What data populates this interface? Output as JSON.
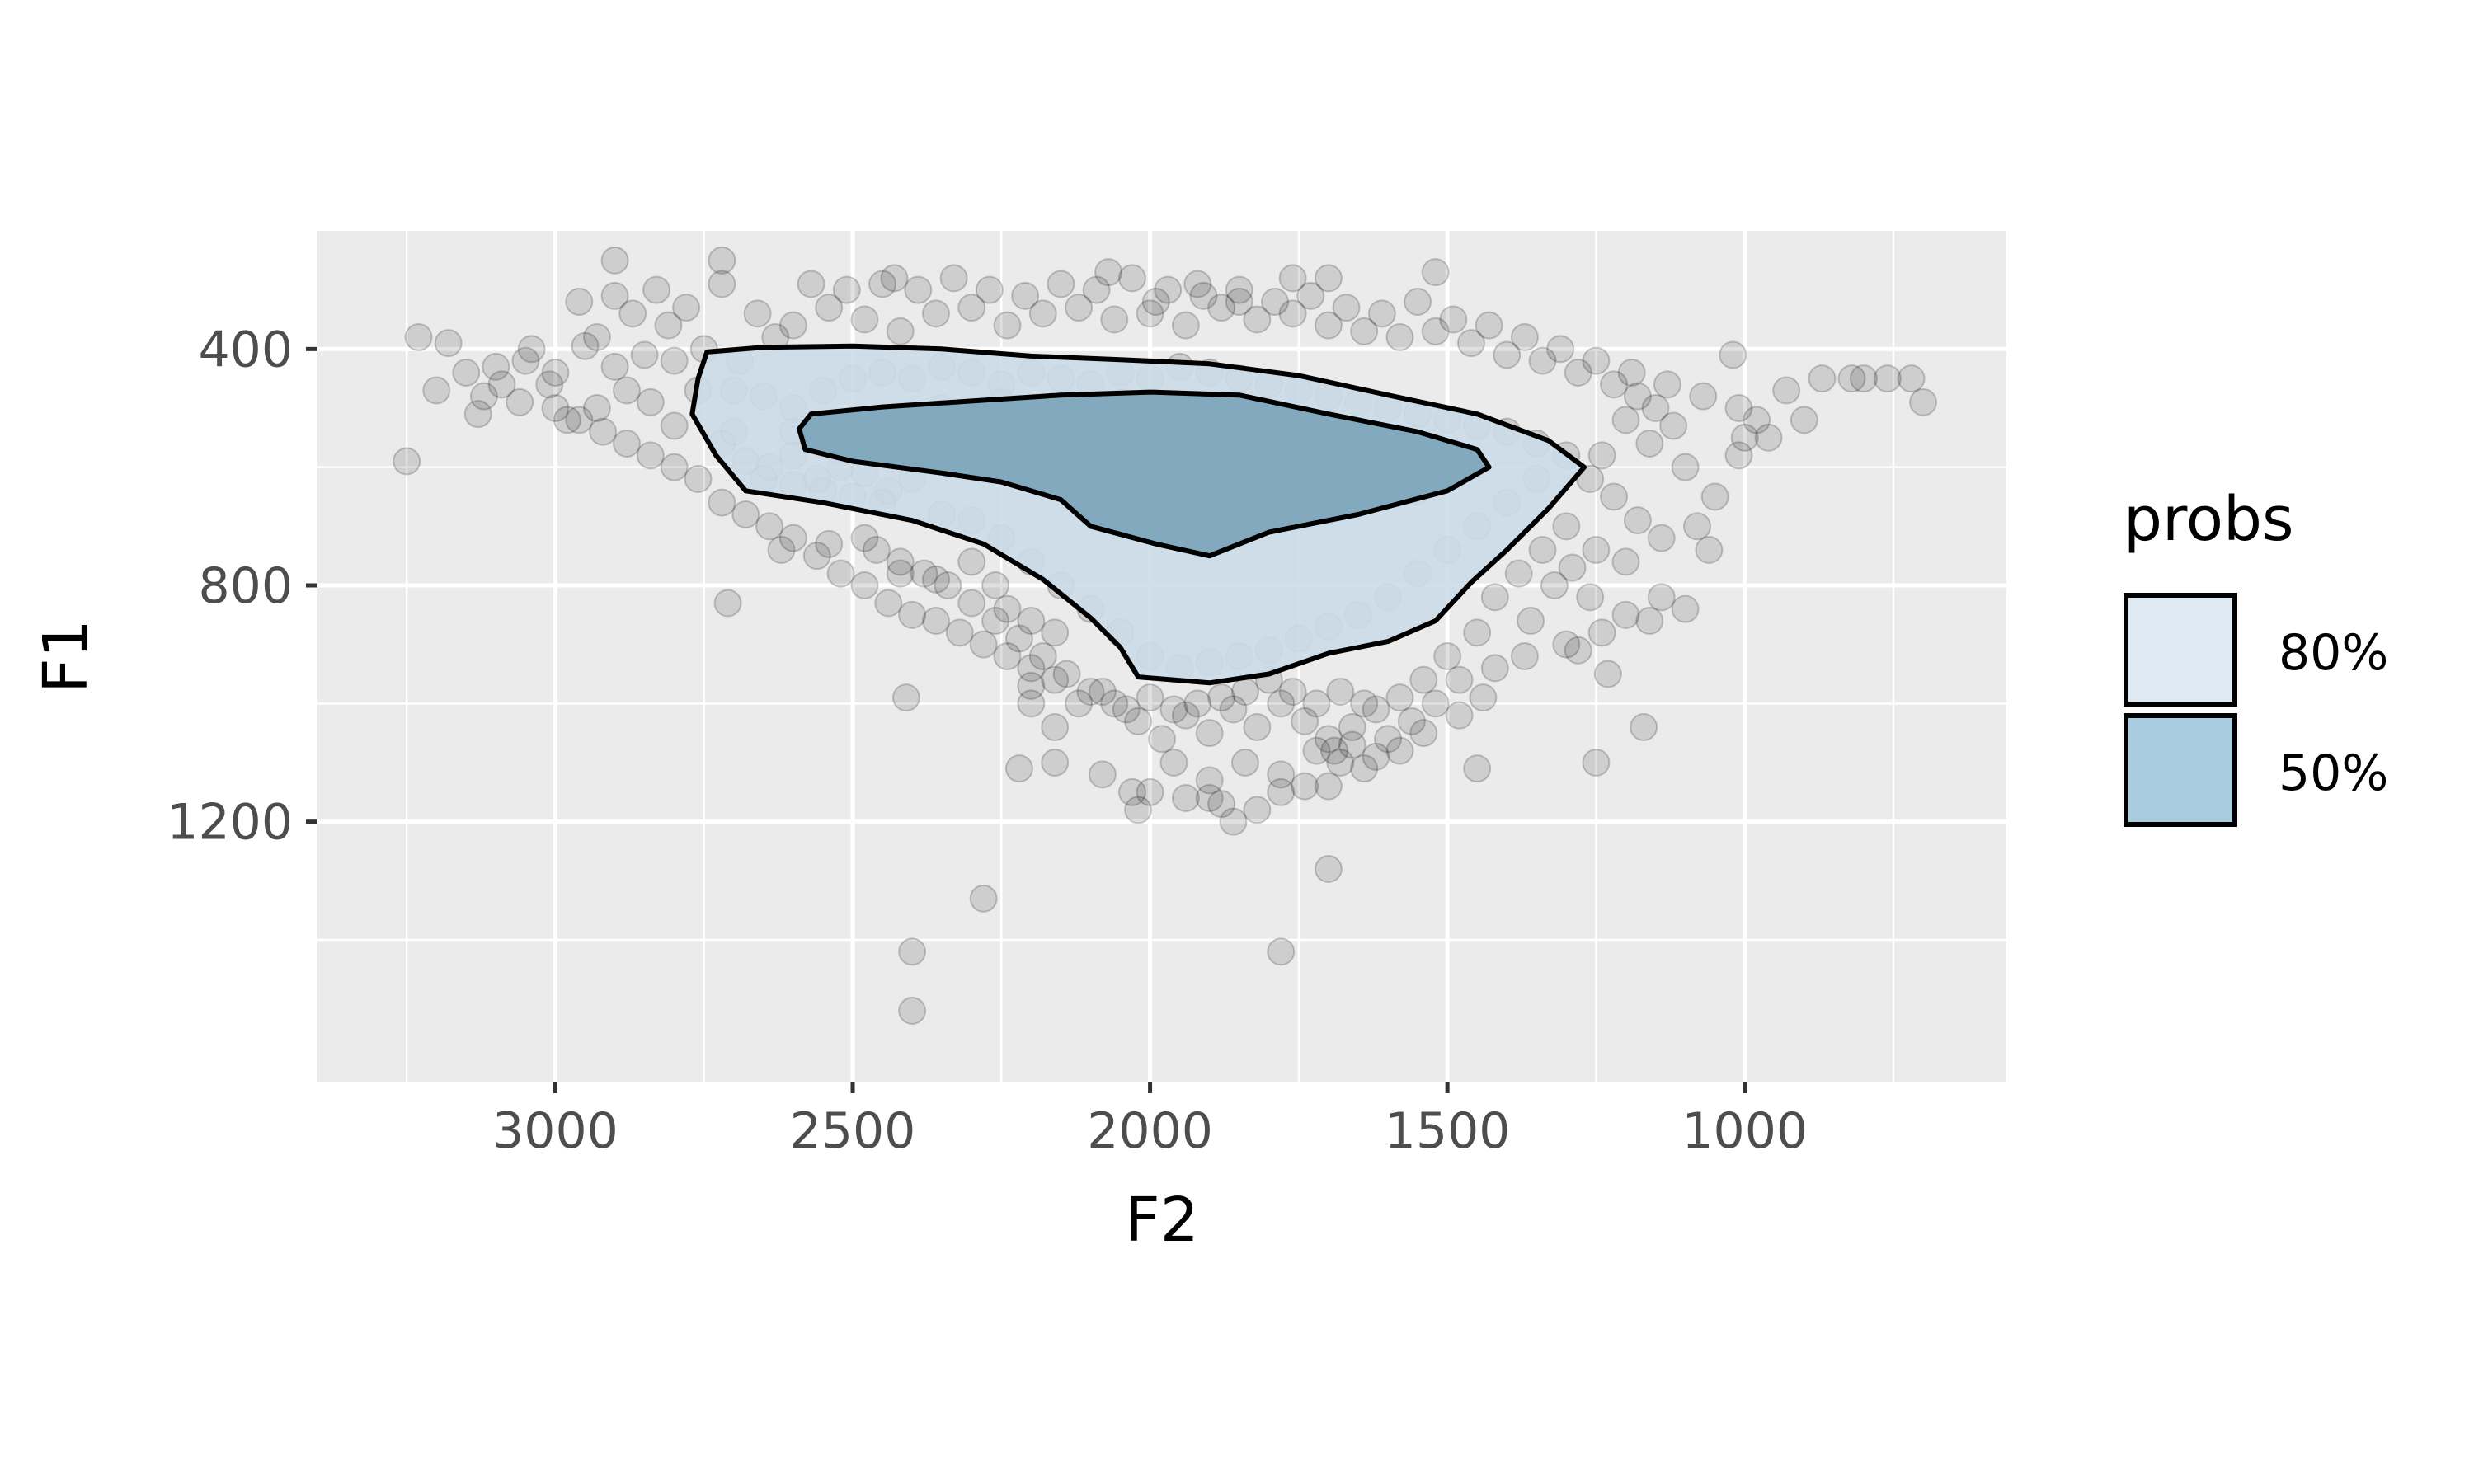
{
  "chart_data": {
    "type": "scatter",
    "title": "",
    "xlabel": "F2",
    "ylabel": "F1",
    "x_reversed": true,
    "y_reversed": true,
    "xlim": [
      3400,
      560
    ],
    "ylim": [
      200,
      1640
    ],
    "x_ticks": [
      3000,
      2500,
      2000,
      1500,
      1000
    ],
    "y_ticks": [
      400,
      800,
      1200
    ],
    "grid": true,
    "point_color": "#000000",
    "point_alpha": 0.12,
    "legend": {
      "title": "probs",
      "position": "right",
      "entries": [
        {
          "label": "80%",
          "fill": "#dfe9f2"
        },
        {
          "label": "50%",
          "fill": "#a9cde0"
        }
      ]
    },
    "contours": [
      {
        "name": "80%",
        "fill": "#cbdbe8",
        "points": [
          [
            2745,
            405
          ],
          [
            2650,
            397
          ],
          [
            2500,
            395
          ],
          [
            2350,
            400
          ],
          [
            2200,
            412
          ],
          [
            2050,
            418
          ],
          [
            1900,
            425
          ],
          [
            1750,
            445
          ],
          [
            1600,
            478
          ],
          [
            1450,
            510
          ],
          [
            1330,
            555
          ],
          [
            1270,
            600
          ],
          [
            1330,
            670
          ],
          [
            1400,
            740
          ],
          [
            1460,
            795
          ],
          [
            1520,
            860
          ],
          [
            1600,
            895
          ],
          [
            1700,
            915
          ],
          [
            1800,
            950
          ],
          [
            1900,
            965
          ],
          [
            2020,
            955
          ],
          [
            2050,
            905
          ],
          [
            2100,
            855
          ],
          [
            2180,
            790
          ],
          [
            2280,
            730
          ],
          [
            2400,
            690
          ],
          [
            2550,
            660
          ],
          [
            2680,
            640
          ],
          [
            2730,
            580
          ],
          [
            2770,
            510
          ],
          [
            2760,
            450
          ]
        ]
      },
      {
        "name": "50%",
        "fill": "#7aa3b8",
        "points": [
          [
            2570,
            510
          ],
          [
            2450,
            498
          ],
          [
            2300,
            488
          ],
          [
            2150,
            478
          ],
          [
            2000,
            473
          ],
          [
            1850,
            478
          ],
          [
            1700,
            510
          ],
          [
            1550,
            540
          ],
          [
            1450,
            570
          ],
          [
            1430,
            600
          ],
          [
            1500,
            640
          ],
          [
            1650,
            680
          ],
          [
            1800,
            710
          ],
          [
            1900,
            750
          ],
          [
            1990,
            730
          ],
          [
            2100,
            700
          ],
          [
            2150,
            655
          ],
          [
            2250,
            625
          ],
          [
            2350,
            610
          ],
          [
            2500,
            590
          ],
          [
            2580,
            570
          ],
          [
            2590,
            535
          ]
        ]
      }
    ],
    "points": [
      [
        3180,
        390
      ],
      [
        3150,
        440
      ],
      [
        3100,
        430
      ],
      [
        3050,
        420
      ],
      [
        3000,
        440
      ],
      [
        2950,
        395
      ],
      [
        2900,
        430
      ],
      [
        2850,
        410
      ],
      [
        2800,
        420
      ],
      [
        2750,
        400
      ],
      [
        3200,
        470
      ],
      [
        3120,
        480
      ],
      [
        3060,
        490
      ],
      [
        3010,
        460
      ],
      [
        2980,
        520
      ],
      [
        2930,
        500
      ],
      [
        2880,
        470
      ],
      [
        2840,
        490
      ],
      [
        2800,
        530
      ],
      [
        2760,
        470
      ],
      [
        2720,
        560
      ],
      [
        2700,
        540
      ],
      [
        2680,
        590
      ],
      [
        2640,
        600
      ],
      [
        2600,
        580
      ],
      [
        2560,
        620
      ],
      [
        2520,
        600
      ],
      [
        2480,
        610
      ],
      [
        2440,
        640
      ],
      [
        2400,
        620
      ],
      [
        2960,
        320
      ],
      [
        2900,
        310
      ],
      [
        2830,
        300
      ],
      [
        2780,
        330
      ],
      [
        2720,
        290
      ],
      [
        2660,
        340
      ],
      [
        2600,
        360
      ],
      [
        2540,
        330
      ],
      [
        2480,
        350
      ],
      [
        2420,
        370
      ],
      [
        2360,
        340
      ],
      [
        2300,
        330
      ],
      [
        2240,
        360
      ],
      [
        2180,
        340
      ],
      [
        2120,
        330
      ],
      [
        2060,
        350
      ],
      [
        2000,
        340
      ],
      [
        1940,
        360
      ],
      [
        1880,
        330
      ],
      [
        1820,
        350
      ],
      [
        1760,
        340
      ],
      [
        1700,
        360
      ],
      [
        1640,
        370
      ],
      [
        1580,
        380
      ],
      [
        1520,
        370
      ],
      [
        1460,
        390
      ],
      [
        1400,
        410
      ],
      [
        1340,
        420
      ],
      [
        1280,
        440
      ],
      [
        1220,
        460
      ],
      [
        1180,
        480
      ],
      [
        1150,
        500
      ],
      [
        1120,
        530
      ],
      [
        1160,
        560
      ],
      [
        1200,
        520
      ],
      [
        1240,
        580
      ],
      [
        1260,
        620
      ],
      [
        1220,
        650
      ],
      [
        1180,
        690
      ],
      [
        1140,
        720
      ],
      [
        1300,
        700
      ],
      [
        1340,
        740
      ],
      [
        1380,
        780
      ],
      [
        1420,
        820
      ],
      [
        1360,
        860
      ],
      [
        1300,
        900
      ],
      [
        1240,
        880
      ],
      [
        1200,
        850
      ],
      [
        1260,
        820
      ],
      [
        1320,
        800
      ],
      [
        1450,
        880
      ],
      [
        1500,
        920
      ],
      [
        1540,
        960
      ],
      [
        1580,
        990
      ],
      [
        1620,
        1010
      ],
      [
        1660,
        1040
      ],
      [
        1700,
        1060
      ],
      [
        1740,
        1030
      ],
      [
        1780,
        1000
      ],
      [
        1820,
        1040
      ],
      [
        1860,
        1010
      ],
      [
        1900,
        1050
      ],
      [
        1940,
        1020
      ],
      [
        1980,
        1060
      ],
      [
        2020,
        1030
      ],
      [
        2060,
        1000
      ],
      [
        2100,
        980
      ],
      [
        2140,
        950
      ],
      [
        2180,
        920
      ],
      [
        2220,
        890
      ],
      [
        2260,
        860
      ],
      [
        2300,
        830
      ],
      [
        2340,
        800
      ],
      [
        2380,
        780
      ],
      [
        2420,
        760
      ],
      [
        2460,
        740
      ],
      [
        2200,
        1000
      ],
      [
        2160,
        1040
      ],
      [
        1960,
        1100
      ],
      [
        1900,
        1130
      ],
      [
        1840,
        1100
      ],
      [
        1780,
        1120
      ],
      [
        1720,
        1080
      ],
      [
        1660,
        1070
      ],
      [
        2080,
        1120
      ],
      [
        2000,
        1150
      ],
      [
        1940,
        1160
      ],
      [
        1880,
        1170
      ],
      [
        1700,
        1140
      ],
      [
        1620,
        1090
      ],
      [
        3250,
        590
      ],
      [
        3230,
        380
      ],
      [
        3130,
        510
      ],
      [
        3090,
        460
      ],
      [
        3040,
        400
      ],
      [
        2930,
        380
      ],
      [
        2870,
        340
      ],
      [
        2810,
        360
      ],
      [
        2690,
        420
      ],
      [
        2630,
        380
      ],
      [
        2570,
        290
      ],
      [
        2510,
        300
      ],
      [
        2450,
        290
      ],
      [
        2390,
        300
      ],
      [
        2330,
        280
      ],
      [
        2270,
        300
      ],
      [
        2210,
        310
      ],
      [
        2150,
        290
      ],
      [
        2090,
        300
      ],
      [
        2030,
        280
      ],
      [
        1970,
        300
      ],
      [
        1910,
        310
      ],
      [
        1850,
        300
      ],
      [
        1790,
        320
      ],
      [
        1730,
        310
      ],
      [
        1670,
        330
      ],
      [
        1610,
        340
      ],
      [
        1550,
        320
      ],
      [
        1490,
        350
      ],
      [
        1430,
        360
      ],
      [
        1370,
        380
      ],
      [
        1310,
        400
      ],
      [
        1250,
        420
      ],
      [
        1190,
        440
      ],
      [
        1130,
        460
      ],
      [
        1070,
        480
      ],
      [
        1010,
        500
      ],
      [
        980,
        520
      ],
      [
        960,
        550
      ],
      [
        1100,
        600
      ],
      [
        1050,
        650
      ],
      [
        1080,
        700
      ],
      [
        1200,
        760
      ],
      [
        1250,
        740
      ],
      [
        1290,
        770
      ],
      [
        1100,
        840
      ],
      [
        1160,
        860
      ],
      [
        1230,
        950
      ],
      [
        1280,
        910
      ],
      [
        1370,
        920
      ],
      [
        1420,
        940
      ],
      [
        1480,
        960
      ],
      [
        1520,
        1000
      ],
      [
        1560,
        1030
      ],
      [
        1600,
        1060
      ],
      [
        1640,
        1000
      ],
      [
        1680,
        980
      ],
      [
        1720,
        1000
      ],
      [
        1760,
        980
      ],
      [
        1800,
        960
      ],
      [
        1840,
        980
      ],
      [
        1880,
        990
      ],
      [
        1920,
        1000
      ],
      [
        1960,
        1010
      ],
      [
        2000,
        990
      ],
      [
        2040,
        1010
      ],
      [
        2080,
        980
      ],
      [
        2120,
        1000
      ],
      [
        2160,
        960
      ],
      [
        2200,
        940
      ],
      [
        2240,
        920
      ],
      [
        2280,
        900
      ],
      [
        2320,
        880
      ],
      [
        2360,
        860
      ],
      [
        2400,
        850
      ],
      [
        2440,
        830
      ],
      [
        2480,
        800
      ],
      [
        2520,
        780
      ],
      [
        2560,
        750
      ],
      [
        2600,
        720
      ],
      [
        2640,
        700
      ],
      [
        2680,
        680
      ],
      [
        2720,
        660
      ],
      [
        2760,
        620
      ],
      [
        2800,
        600
      ],
      [
        2840,
        580
      ],
      [
        2880,
        560
      ],
      [
        2920,
        540
      ],
      [
        2960,
        520
      ],
      [
        3000,
        500
      ],
      [
        2700,
        470
      ],
      [
        2650,
        480
      ],
      [
        2600,
        500
      ],
      [
        2550,
        470
      ],
      [
        2500,
        450
      ],
      [
        2450,
        440
      ],
      [
        2400,
        450
      ],
      [
        2350,
        430
      ],
      [
        2300,
        440
      ],
      [
        2250,
        460
      ],
      [
        2200,
        440
      ],
      [
        2150,
        450
      ],
      [
        2100,
        460
      ],
      [
        2050,
        440
      ],
      [
        2000,
        450
      ],
      [
        1950,
        430
      ],
      [
        1900,
        440
      ],
      [
        1850,
        450
      ],
      [
        1800,
        460
      ],
      [
        1750,
        470
      ],
      [
        1700,
        480
      ],
      [
        1650,
        490
      ],
      [
        1600,
        500
      ],
      [
        1550,
        510
      ],
      [
        1500,
        520
      ],
      [
        1450,
        530
      ],
      [
        1400,
        540
      ],
      [
        1350,
        560
      ],
      [
        1300,
        580
      ],
      [
        1350,
        620
      ],
      [
        1400,
        660
      ],
      [
        1450,
        700
      ],
      [
        1500,
        740
      ],
      [
        1550,
        780
      ],
      [
        1600,
        820
      ],
      [
        1650,
        850
      ],
      [
        1700,
        870
      ],
      [
        1750,
        890
      ],
      [
        1800,
        910
      ],
      [
        1850,
        920
      ],
      [
        1900,
        930
      ],
      [
        1950,
        940
      ],
      [
        2000,
        920
      ],
      [
        2050,
        880
      ],
      [
        2100,
        840
      ],
      [
        2150,
        800
      ],
      [
        2200,
        760
      ],
      [
        2250,
        720
      ],
      [
        2300,
        690
      ],
      [
        2350,
        680
      ],
      [
        2450,
        660
      ],
      [
        2500,
        650
      ],
      [
        2550,
        640
      ],
      [
        2600,
        630
      ],
      [
        2650,
        620
      ],
      [
        2300,
        600
      ],
      [
        2200,
        580
      ],
      [
        2100,
        560
      ],
      [
        2000,
        550
      ],
      [
        1900,
        560
      ],
      [
        1800,
        580
      ],
      [
        1700,
        600
      ],
      [
        1600,
        620
      ],
      [
        1550,
        640
      ],
      [
        1650,
        660
      ],
      [
        1750,
        680
      ],
      [
        1850,
        700
      ],
      [
        1950,
        680
      ],
      [
        2050,
        640
      ],
      [
        2150,
        620
      ],
      [
        2400,
        560
      ],
      [
        2350,
        540
      ],
      [
        2250,
        530
      ],
      [
        2150,
        520
      ],
      [
        2050,
        510
      ],
      [
        1950,
        520
      ],
      [
        1850,
        530
      ],
      [
        1750,
        540
      ],
      [
        1650,
        560
      ],
      [
        1600,
        580
      ],
      [
        2600,
        540
      ],
      [
        2550,
        560
      ],
      [
        2450,
        520
      ],
      [
        2350,
        500
      ],
      [
        2250,
        490
      ],
      [
        2150,
        500
      ],
      [
        2050,
        490
      ],
      [
        1950,
        500
      ],
      [
        1850,
        500
      ],
      [
        1750,
        520
      ],
      [
        2900,
        250
      ],
      [
        2720,
        250
      ],
      [
        2430,
        280
      ],
      [
        2070,
        270
      ],
      [
        1920,
        290
      ],
      [
        1760,
        280
      ],
      [
        1520,
        270
      ],
      [
        1700,
        280
      ],
      [
        1850,
        320
      ],
      [
        1990,
        320
      ],
      [
        1020,
        410
      ],
      [
        930,
        470
      ],
      [
        900,
        520
      ],
      [
        870,
        450
      ],
      [
        820,
        450
      ],
      [
        800,
        450
      ],
      [
        760,
        450
      ],
      [
        720,
        450
      ],
      [
        700,
        490
      ],
      [
        1000,
        550
      ],
      [
        1010,
        580
      ],
      [
        1060,
        740
      ],
      [
        1140,
        820
      ],
      [
        1170,
        1040
      ],
      [
        1250,
        1100
      ],
      [
        1450,
        1110
      ],
      [
        1690,
        1080
      ],
      [
        1700,
        1280
      ],
      [
        1780,
        1420
      ],
      [
        2020,
        1180
      ],
      [
        2280,
        1330
      ],
      [
        2220,
        1110
      ],
      [
        2160,
        1100
      ],
      [
        2030,
        1150
      ],
      [
        2400,
        1420
      ],
      [
        2400,
        1520
      ],
      [
        2410,
        990
      ],
      [
        2200,
        970
      ],
      [
        2420,
        780
      ],
      [
        2710,
        830
      ],
      [
        2620,
        740
      ],
      [
        2540,
        730
      ],
      [
        2480,
        720
      ],
      [
        2360,
        790
      ],
      [
        2300,
        760
      ],
      [
        2260,
        800
      ],
      [
        2240,
        840
      ],
      [
        2200,
        860
      ],
      [
        2160,
        880
      ],
      [
        1900,
        1160
      ],
      [
        1860,
        1200
      ],
      [
        1820,
        1180
      ],
      [
        1780,
        1150
      ],
      [
        1740,
        1140
      ],
      [
        1680,
        1100
      ],
      [
        1640,
        1110
      ],
      [
        1580,
        1080
      ],
      [
        1540,
        1050
      ],
      [
        1480,
        1020
      ],
      [
        1440,
        990
      ]
    ]
  }
}
